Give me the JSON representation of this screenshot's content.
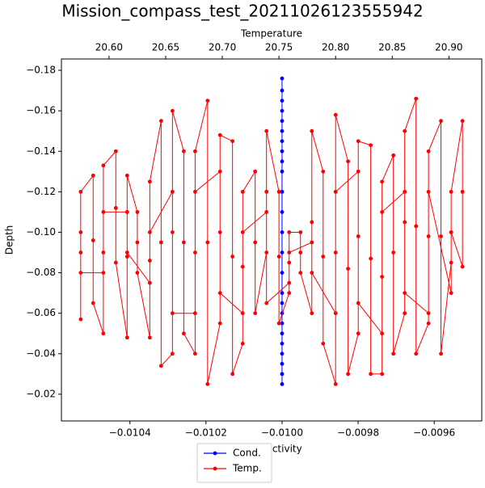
{
  "chart_data": {
    "type": "line",
    "title": "Mission_compass_test_20211026123555942",
    "xlabel": "Conductivity",
    "x2label": "Temperature",
    "ylabel": "Depth",
    "xlim": [
      -0.01058,
      -0.009475
    ],
    "xticks": [
      {
        "value": -0.0104,
        "label": "−0.0104"
      },
      {
        "value": -0.0102,
        "label": "−0.0102"
      },
      {
        "value": -0.01,
        "label": "−0.0100"
      },
      {
        "value": -0.0098,
        "label": "−0.0098"
      },
      {
        "value": -0.0096,
        "label": "−0.0096"
      }
    ],
    "x2lim": [
      20.558,
      20.929
    ],
    "x2ticks": [
      {
        "value": 20.6,
        "label": "20.60"
      },
      {
        "value": 20.65,
        "label": "20.65"
      },
      {
        "value": 20.7,
        "label": "20.70"
      },
      {
        "value": 20.75,
        "label": "20.75"
      },
      {
        "value": 20.8,
        "label": "20.80"
      },
      {
        "value": 20.85,
        "label": "20.85"
      },
      {
        "value": 20.9,
        "label": "20.90"
      }
    ],
    "ylim": [
      -0.0068,
      -0.1856
    ],
    "yticks": [
      {
        "value": -0.18,
        "label": "−0.18"
      },
      {
        "value": -0.16,
        "label": "−0.16"
      },
      {
        "value": -0.14,
        "label": "−0.14"
      },
      {
        "value": -0.12,
        "label": "−0.12"
      },
      {
        "value": -0.1,
        "label": "−0.10"
      },
      {
        "value": -0.08,
        "label": "−0.08"
      },
      {
        "value": -0.06,
        "label": "−0.06"
      },
      {
        "value": -0.04,
        "label": "−0.04"
      },
      {
        "value": -0.02,
        "label": "−0.02"
      }
    ],
    "legend": "lower center",
    "series": [
      {
        "name": "Cond.",
        "color": "#0000ff",
        "axis": "x",
        "x": [
          -0.01,
          -0.01,
          -0.01,
          -0.01,
          -0.01,
          -0.01,
          -0.01,
          -0.01,
          -0.01,
          -0.01,
          -0.01,
          -0.01,
          -0.01,
          -0.01,
          -0.01,
          -0.01,
          -0.01,
          -0.01,
          -0.01,
          -0.01,
          -0.01,
          -0.01,
          -0.01,
          -0.01,
          -0.01
        ],
        "values": [
          -0.025,
          -0.176,
          -0.03,
          -0.17,
          -0.04,
          -0.16,
          -0.05,
          -0.15,
          -0.06,
          -0.14,
          -0.07,
          -0.13,
          -0.08,
          -0.12,
          -0.09,
          -0.11,
          -0.1,
          -0.145,
          -0.035,
          -0.155,
          -0.045,
          -0.165,
          -0.055,
          -0.135,
          -0.065
        ]
      },
      {
        "name": "Temp.",
        "color": "#ff0000",
        "axis": "x2",
        "x": [
          20.575,
          20.575,
          20.575,
          20.586,
          20.586,
          20.586,
          20.595,
          20.595,
          20.595,
          20.606,
          20.606,
          20.606,
          20.616,
          20.616,
          20.616,
          20.625,
          20.625,
          20.625,
          20.636,
          20.636,
          20.636,
          20.646,
          20.646,
          20.646,
          20.656,
          20.656,
          20.656,
          20.666,
          20.666,
          20.666,
          20.676,
          20.676,
          20.676,
          20.687,
          20.687,
          20.687,
          20.698,
          20.698,
          20.698,
          20.709,
          20.709,
          20.709,
          20.718,
          20.718,
          20.718,
          20.729,
          20.729,
          20.729,
          20.739,
          20.739,
          20.739,
          20.75,
          20.75,
          20.75,
          20.759,
          20.759,
          20.759,
          20.769,
          20.769,
          20.769,
          20.779,
          20.779,
          20.779,
          20.789,
          20.789,
          20.789,
          20.8,
          20.8,
          20.8,
          20.811,
          20.811,
          20.811,
          20.82,
          20.82,
          20.82,
          20.831,
          20.831,
          20.831,
          20.841,
          20.841,
          20.841,
          20.851,
          20.851,
          20.851,
          20.861,
          20.861,
          20.861,
          20.871,
          20.871,
          20.871,
          20.882,
          20.882,
          20.882,
          20.893,
          20.893,
          20.893,
          20.902,
          20.902,
          20.902,
          20.912,
          20.912,
          20.912,
          20.902,
          20.902,
          20.882,
          20.882,
          20.861,
          20.861,
          20.841,
          20.841,
          20.82,
          20.82,
          20.8,
          20.8,
          20.779,
          20.779,
          20.759,
          20.759,
          20.739,
          20.739,
          20.718,
          20.718,
          20.698,
          20.698,
          20.676,
          20.676,
          20.656,
          20.656,
          20.636,
          20.636,
          20.616,
          20.616,
          20.595,
          20.595,
          20.575,
          20.575
        ],
        "values": [
          -0.057,
          -0.09,
          -0.12,
          -0.128,
          -0.096,
          -0.065,
          -0.05,
          -0.09,
          -0.133,
          -0.14,
          -0.112,
          -0.085,
          -0.048,
          -0.088,
          -0.128,
          -0.11,
          -0.095,
          -0.08,
          -0.048,
          -0.086,
          -0.125,
          -0.155,
          -0.095,
          -0.034,
          -0.04,
          -0.1,
          -0.16,
          -0.14,
          -0.095,
          -0.05,
          -0.04,
          -0.09,
          -0.14,
          -0.165,
          -0.095,
          -0.025,
          -0.055,
          -0.1,
          -0.148,
          -0.145,
          -0.088,
          -0.03,
          -0.045,
          -0.083,
          -0.12,
          -0.13,
          -0.095,
          -0.06,
          -0.09,
          -0.12,
          -0.15,
          -0.12,
          -0.088,
          -0.055,
          -0.07,
          -0.085,
          -0.1,
          -0.1,
          -0.09,
          -0.08,
          -0.06,
          -0.105,
          -0.15,
          -0.13,
          -0.088,
          -0.045,
          -0.025,
          -0.09,
          -0.158,
          -0.135,
          -0.082,
          -0.03,
          -0.05,
          -0.098,
          -0.145,
          -0.143,
          -0.087,
          -0.03,
          -0.03,
          -0.078,
          -0.125,
          -0.138,
          -0.09,
          -0.04,
          -0.06,
          -0.105,
          -0.15,
          -0.166,
          -0.103,
          -0.04,
          -0.055,
          -0.098,
          -0.14,
          -0.155,
          -0.098,
          -0.04,
          -0.085,
          -0.1,
          -0.12,
          -0.155,
          -0.12,
          -0.083,
          -0.1,
          -0.07,
          -0.12,
          -0.06,
          -0.07,
          -0.12,
          -0.11,
          -0.05,
          -0.065,
          -0.13,
          -0.12,
          -0.06,
          -0.08,
          -0.095,
          -0.09,
          -0.075,
          -0.065,
          -0.11,
          -0.1,
          -0.06,
          -0.07,
          -0.13,
          -0.12,
          -0.06,
          -0.06,
          -0.12,
          -0.1,
          -0.075,
          -0.09,
          -0.11,
          -0.11,
          -0.08,
          -0.08,
          -0.1
        ]
      }
    ]
  }
}
